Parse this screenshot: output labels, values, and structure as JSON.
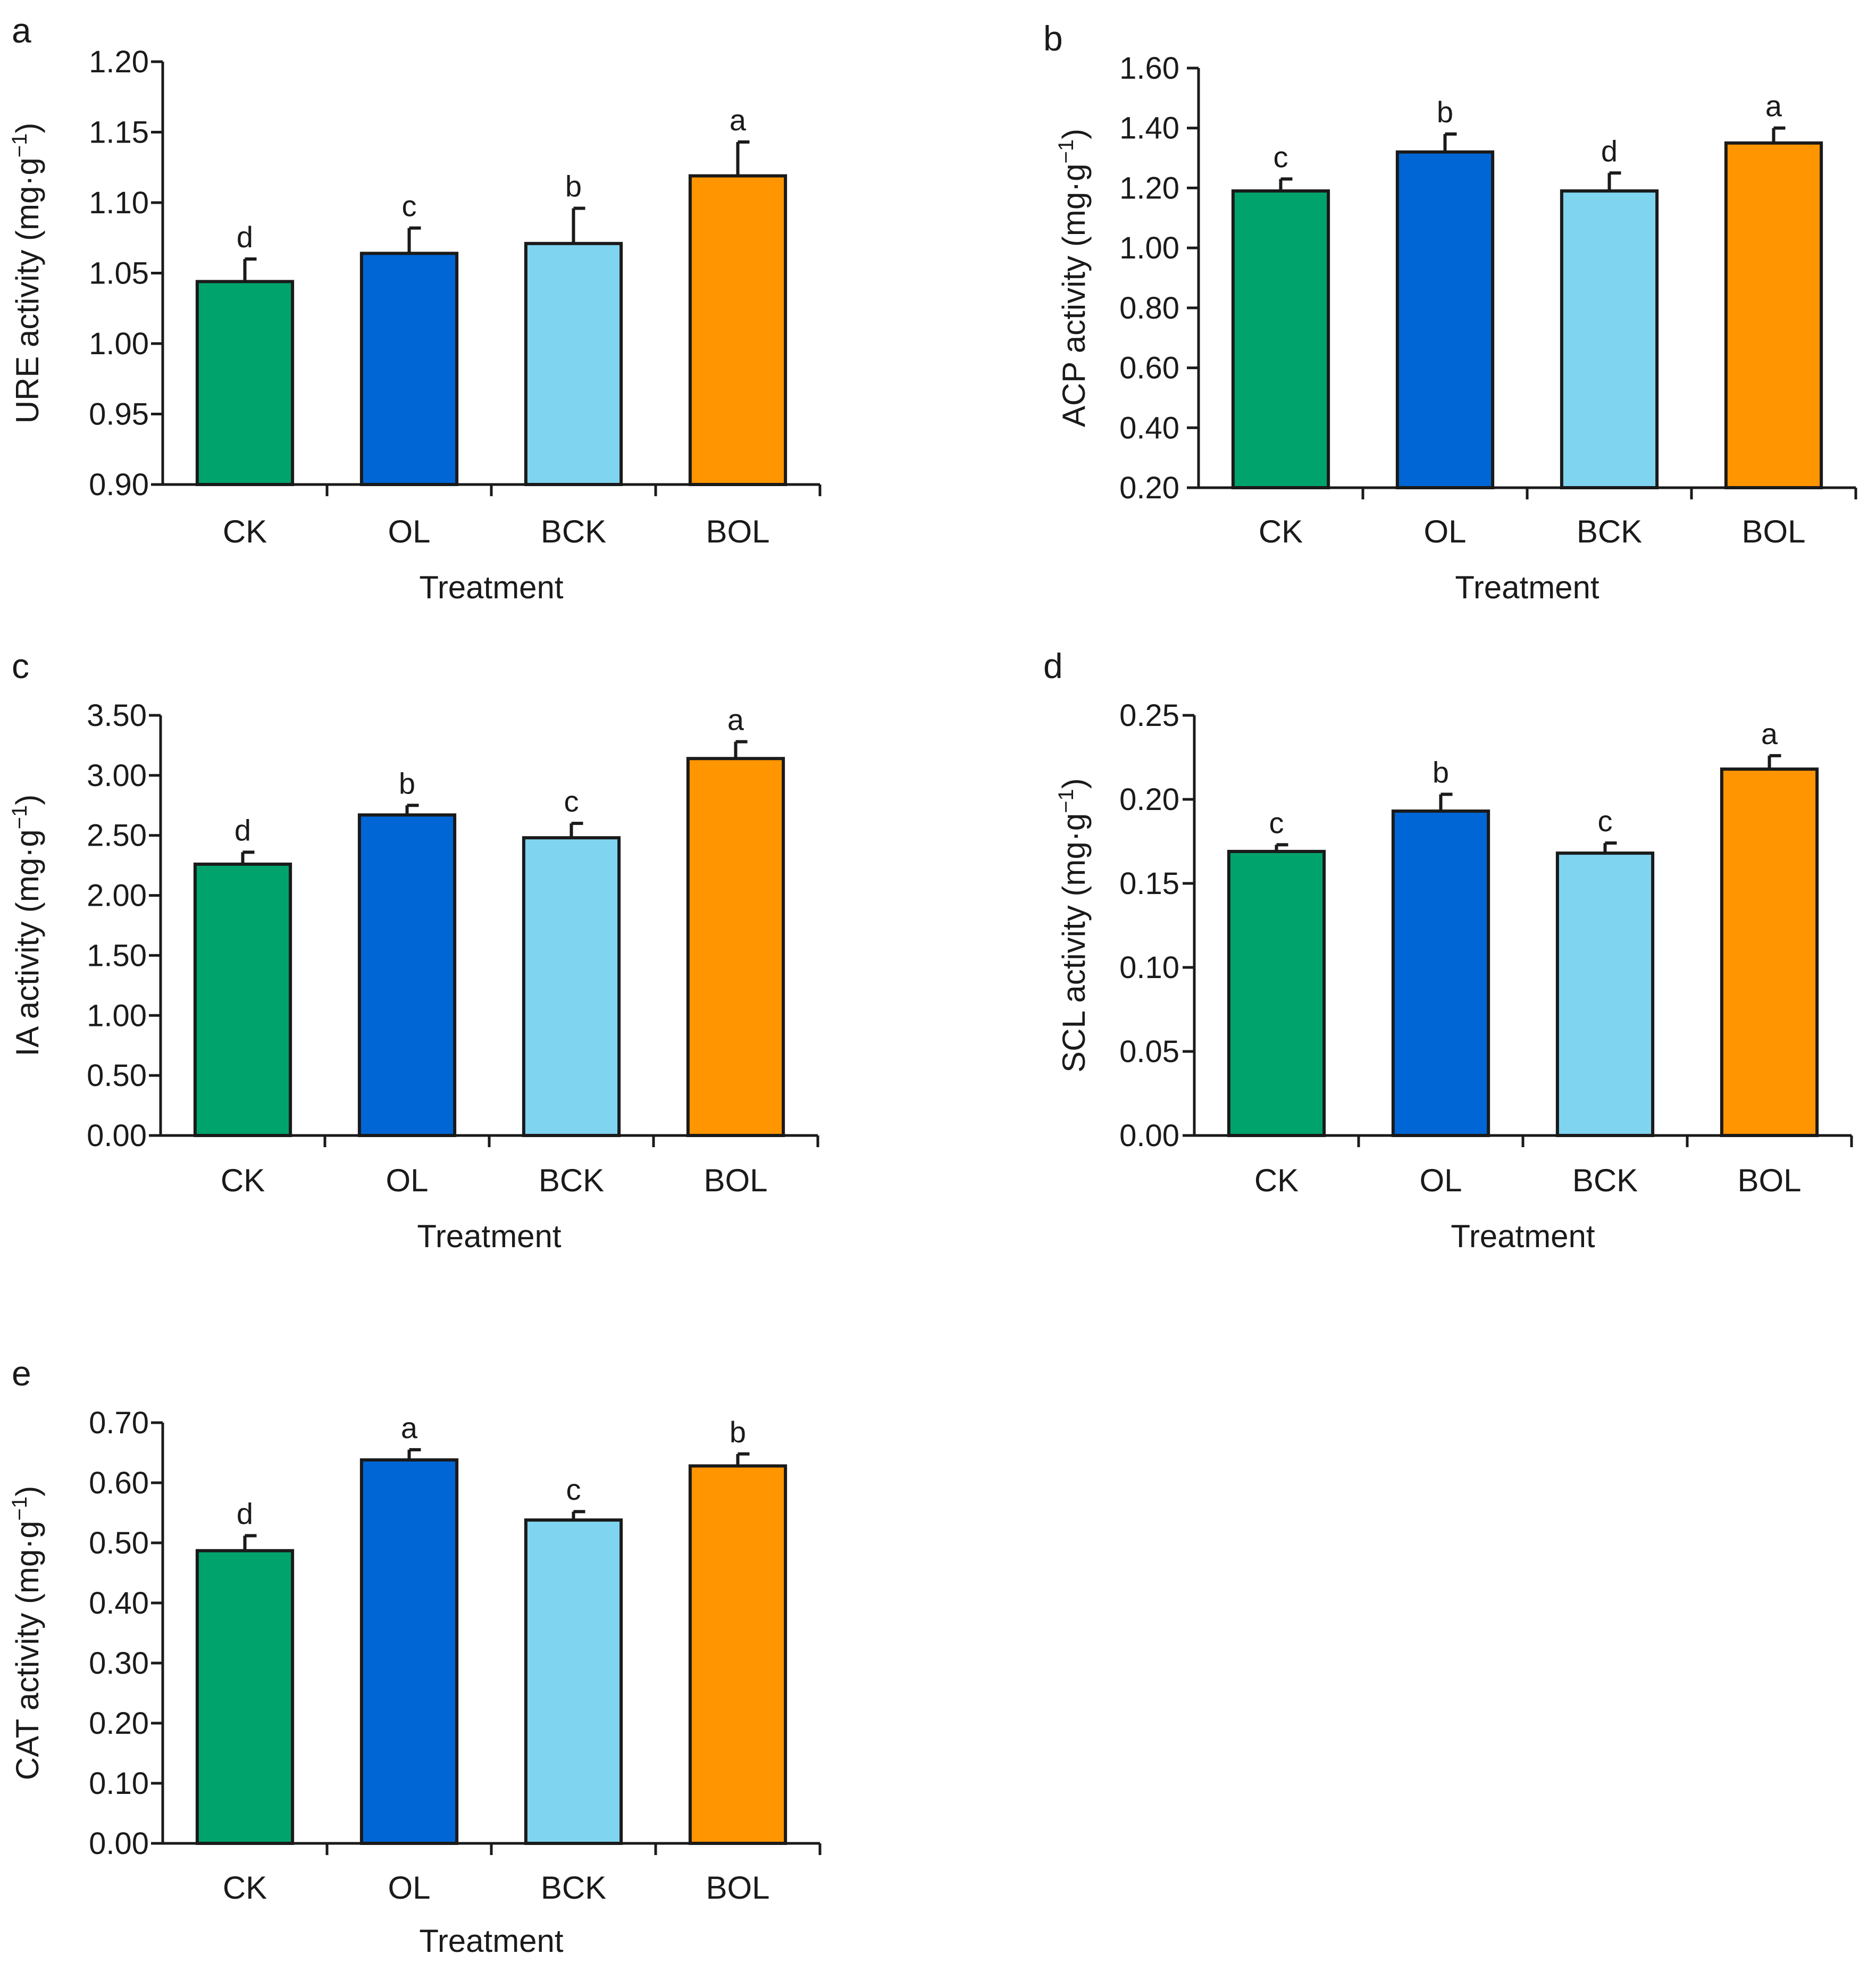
{
  "chart_data": [
    {
      "type": "bar",
      "panel_label": "a",
      "categories": [
        "CK",
        "OL",
        "BCK",
        "BOL"
      ],
      "values": [
        1.044,
        1.064,
        1.071,
        1.119
      ],
      "errors": [
        0.016,
        0.018,
        0.025,
        0.024
      ],
      "significance": [
        "d",
        "c",
        "b",
        "a"
      ],
      "xlabel": "Treatment",
      "ylabel_main": "URE activity (mg·g",
      "ylabel_sup": "−1",
      "ylabel_end": ")",
      "ylim": [
        0.9,
        1.2
      ],
      "yticks": [
        "0.90",
        "0.95",
        "1.00",
        "1.05",
        "1.10",
        "1.15",
        "1.20"
      ],
      "colors": [
        "#00a36c",
        "#0066d6",
        "#7fd4f0",
        "#ff9500"
      ]
    },
    {
      "type": "bar",
      "panel_label": "b",
      "categories": [
        "CK",
        "OL",
        "BCK",
        "BOL"
      ],
      "values": [
        1.19,
        1.32,
        1.19,
        1.35
      ],
      "errors": [
        0.04,
        0.06,
        0.06,
        0.05
      ],
      "significance": [
        "c",
        "b",
        "d",
        "a"
      ],
      "xlabel": "Treatment",
      "ylabel_main": "ACP activity (mg·g",
      "ylabel_sup": "−1",
      "ylabel_end": ")",
      "ylim": [
        0.2,
        1.6
      ],
      "yticks": [
        "0.20",
        "0.40",
        "0.60",
        "0.80",
        "1.00",
        "1.20",
        "1.40",
        "1.60"
      ],
      "colors": [
        "#00a36c",
        "#0066d6",
        "#7fd4f0",
        "#ff9500"
      ]
    },
    {
      "type": "bar",
      "panel_label": "c",
      "categories": [
        "CK",
        "OL",
        "BCK",
        "BOL"
      ],
      "values": [
        2.26,
        2.67,
        2.48,
        3.14
      ],
      "errors": [
        0.1,
        0.08,
        0.12,
        0.14
      ],
      "significance": [
        "d",
        "b",
        "c",
        "a"
      ],
      "xlabel": "Treatment",
      "ylabel_main": "IA activity (mg·g",
      "ylabel_sup": "−1",
      "ylabel_end": ")",
      "ylim": [
        0,
        3.5
      ],
      "yticks": [
        "0.00",
        "0.50",
        "1.00",
        "1.50",
        "2.00",
        "2.50",
        "3.00",
        "3.50"
      ],
      "colors": [
        "#00a36c",
        "#0066d6",
        "#7fd4f0",
        "#ff9500"
      ]
    },
    {
      "type": "bar",
      "panel_label": "d",
      "categories": [
        "CK",
        "OL",
        "BCK",
        "BOL"
      ],
      "values": [
        0.169,
        0.193,
        0.168,
        0.218
      ],
      "errors": [
        0.004,
        0.01,
        0.006,
        0.008
      ],
      "significance": [
        "c",
        "b",
        "c",
        "a"
      ],
      "xlabel": "Treatment",
      "ylabel_main": "SCL activity (mg·g",
      "ylabel_sup": "−1",
      "ylabel_end": ")",
      "ylim": [
        0,
        0.25
      ],
      "yticks": [
        "0.00",
        "0.05",
        "0.10",
        "0.15",
        "0.20",
        "0.25"
      ],
      "colors": [
        "#00a36c",
        "#0066d6",
        "#7fd4f0",
        "#ff9500"
      ]
    },
    {
      "type": "bar",
      "panel_label": "e",
      "categories": [
        "CK",
        "OL",
        "BCK",
        "BOL"
      ],
      "values": [
        0.487,
        0.638,
        0.538,
        0.628
      ],
      "errors": [
        0.025,
        0.017,
        0.014,
        0.02
      ],
      "significance": [
        "d",
        "a",
        "c",
        "b"
      ],
      "xlabel": "Treatment",
      "ylabel_main": "CAT activity (mg·g",
      "ylabel_sup": "−1",
      "ylabel_end": ")",
      "ylim": [
        0,
        0.7
      ],
      "yticks": [
        "0.00",
        "0.10",
        "0.20",
        "0.30",
        "0.40",
        "0.50",
        "0.60",
        "0.70"
      ],
      "colors": [
        "#00a36c",
        "#0066d6",
        "#7fd4f0",
        "#ff9500"
      ]
    }
  ]
}
